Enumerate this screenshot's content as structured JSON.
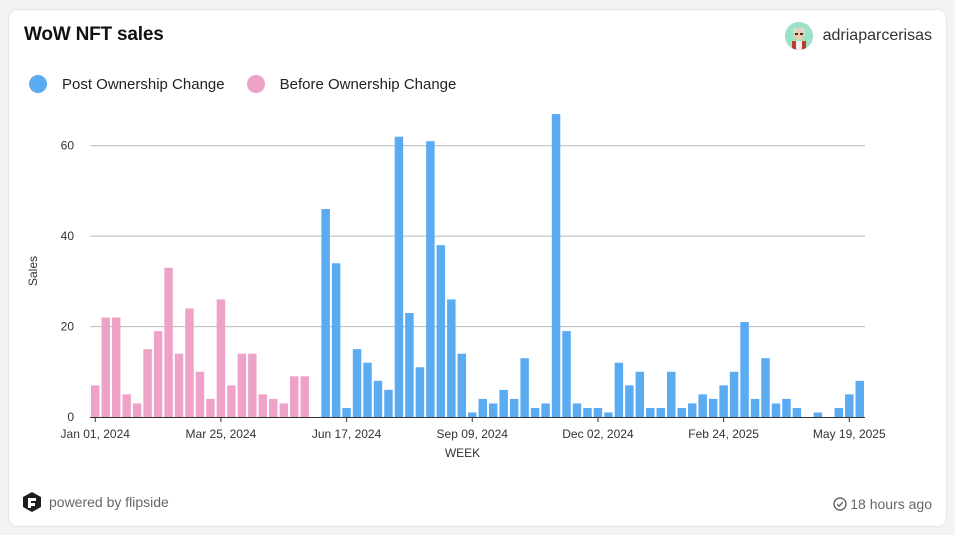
{
  "header": {
    "title": "WoW NFT sales",
    "username": "adriaparcerisas"
  },
  "footer": {
    "powered_by": "powered by flipside",
    "updated": "18 hours ago"
  },
  "icons": {
    "logo": "flipside-logo-icon",
    "clock": "clock-check-icon",
    "avatar": "user-avatar"
  },
  "colors": {
    "post": "#5aabf1",
    "before": "#efa2c8",
    "grid": "#b9b9b9"
  },
  "chart_data": {
    "type": "bar",
    "xlabel": "WEEK",
    "ylabel": "Sales",
    "ylim": [
      0,
      69
    ],
    "yticks": [
      0,
      20,
      40,
      60
    ],
    "grid": true,
    "legend_position": "top-left",
    "xtick_labels": [
      "Jan 01, 2024",
      "Mar 25, 2024",
      "Jun 17, 2024",
      "Sep 09, 2024",
      "Dec 02, 2024",
      "Feb 24, 2025",
      "May 19, 2025"
    ],
    "xtick_indices": [
      0,
      12,
      24,
      36,
      48,
      60,
      72
    ],
    "categories": [
      "2024-01-01",
      "2024-01-08",
      "2024-01-15",
      "2024-01-22",
      "2024-01-29",
      "2024-02-05",
      "2024-02-12",
      "2024-02-19",
      "2024-02-26",
      "2024-03-04",
      "2024-03-11",
      "2024-03-18",
      "2024-03-25",
      "2024-04-01",
      "2024-04-08",
      "2024-04-15",
      "2024-04-22",
      "2024-04-29",
      "2024-05-06",
      "2024-05-13",
      "2024-05-20",
      "2024-05-27",
      "2024-06-03",
      "2024-06-10",
      "2024-06-17",
      "2024-06-24",
      "2024-07-01",
      "2024-07-08",
      "2024-07-15",
      "2024-07-22",
      "2024-07-29",
      "2024-08-05",
      "2024-08-12",
      "2024-08-19",
      "2024-08-26",
      "2024-09-02",
      "2024-09-09",
      "2024-09-16",
      "2024-09-23",
      "2024-09-30",
      "2024-10-07",
      "2024-10-14",
      "2024-10-21",
      "2024-10-28",
      "2024-11-04",
      "2024-11-11",
      "2024-11-18",
      "2024-11-25",
      "2024-12-02",
      "2024-12-09",
      "2024-12-16",
      "2024-12-23",
      "2024-12-30",
      "2025-01-06",
      "2025-01-13",
      "2025-01-20",
      "2025-01-27",
      "2025-02-03",
      "2025-02-10",
      "2025-02-17",
      "2025-02-24",
      "2025-03-03",
      "2025-03-10",
      "2025-03-17",
      "2025-03-24",
      "2025-03-31",
      "2025-04-07",
      "2025-04-14",
      "2025-04-21",
      "2025-04-28",
      "2025-05-05",
      "2025-05-12",
      "2025-05-19",
      "2025-05-26"
    ],
    "series": [
      {
        "name": "Post Ownership Change",
        "color": "#5aabf1",
        "values": [
          null,
          null,
          null,
          null,
          null,
          null,
          null,
          null,
          null,
          null,
          null,
          null,
          null,
          null,
          null,
          null,
          null,
          null,
          null,
          null,
          null,
          null,
          46,
          34,
          2,
          15,
          12,
          8,
          6,
          62,
          23,
          11,
          61,
          38,
          26,
          14,
          1,
          4,
          3,
          6,
          4,
          13,
          2,
          3,
          67,
          19,
          3,
          2,
          2,
          1,
          12,
          7,
          10,
          2,
          2,
          10,
          2,
          3,
          5,
          4,
          7,
          10,
          21,
          4,
          13,
          3,
          4,
          2,
          0,
          1,
          0,
          2,
          5,
          8
        ]
      },
      {
        "name": "Before Ownership Change",
        "color": "#efa2c8",
        "values": [
          7,
          22,
          22,
          5,
          3,
          15,
          19,
          33,
          14,
          24,
          10,
          4,
          26,
          7,
          14,
          14,
          5,
          4,
          3,
          9,
          9,
          null,
          null,
          null,
          null,
          null,
          null,
          null,
          null,
          null,
          null,
          null,
          null,
          null,
          null,
          null,
          null,
          null,
          null,
          null,
          null,
          null,
          null,
          null,
          null,
          null,
          null,
          null,
          null,
          null,
          null,
          null,
          null,
          null,
          null,
          null,
          null,
          null,
          null,
          null,
          null,
          null,
          null,
          null,
          null,
          null,
          null,
          null,
          null,
          null,
          null,
          null,
          null,
          null
        ]
      }
    ]
  }
}
